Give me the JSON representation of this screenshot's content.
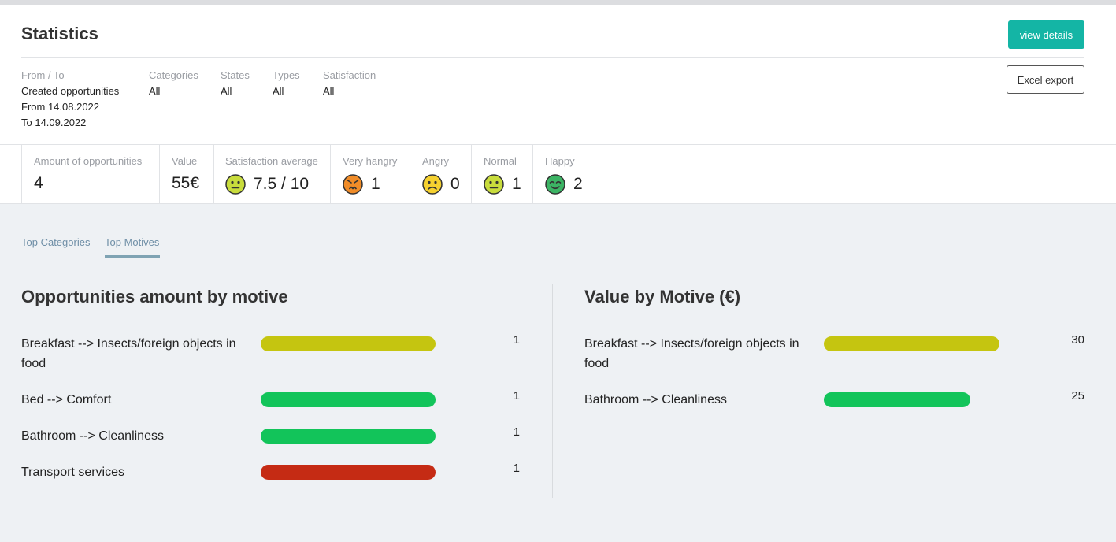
{
  "header": {
    "title": "Statistics",
    "view_details_label": "view details",
    "excel_export_label": "Excel export"
  },
  "filters": {
    "from_to": {
      "label": "From / To",
      "mode": "Created opportunities",
      "from": "From 14.08.2022",
      "to": "To 14.09.2022"
    },
    "categories": {
      "label": "Categories",
      "value": "All"
    },
    "states": {
      "label": "States",
      "value": "All"
    },
    "types": {
      "label": "Types",
      "value": "All"
    },
    "satisfaction": {
      "label": "Satisfaction",
      "value": "All"
    }
  },
  "stats": {
    "amount": {
      "label": "Amount of opportunities",
      "value": "4"
    },
    "value": {
      "label": "Value",
      "value": "55€"
    },
    "satisfaction_avg": {
      "label": "Satisfaction average",
      "value": "7.5 / 10",
      "icon": "neutral-face-icon"
    },
    "very_hangry": {
      "label": "Very hangry",
      "value": "1",
      "icon": "very-angry-face-icon",
      "color": "#f08c28"
    },
    "angry": {
      "label": "Angry",
      "value": "0",
      "icon": "sad-face-icon",
      "color": "#f5d130"
    },
    "normal": {
      "label": "Normal",
      "value": "1",
      "icon": "neutral-face-icon",
      "color": "#c8dc3c"
    },
    "happy": {
      "label": "Happy",
      "value": "2",
      "icon": "happy-face-icon",
      "color": "#3cb464"
    }
  },
  "tabs": [
    {
      "label": "Top Categories",
      "active": false
    },
    {
      "label": "Top Motives",
      "active": true
    }
  ],
  "chart_data": [
    {
      "type": "bar",
      "title": "Opportunities amount by motive",
      "categories": [
        "Breakfast --> Insects/foreign objects in food",
        "Bed --> Comfort",
        "Bathroom --> Cleanliness",
        "Transport services"
      ],
      "values": [
        1,
        1,
        1,
        1
      ],
      "colors": [
        "#c5c510",
        "#12c45a",
        "#12c45a",
        "#c52b14"
      ],
      "xlim": [
        0,
        1
      ]
    },
    {
      "type": "bar",
      "title": "Value by Motive (€)",
      "categories": [
        "Breakfast --> Insects/foreign objects in food",
        "Bathroom --> Cleanliness"
      ],
      "values": [
        30,
        25
      ],
      "colors": [
        "#c5c510",
        "#12c45a"
      ],
      "xlim": [
        0,
        30
      ]
    }
  ]
}
